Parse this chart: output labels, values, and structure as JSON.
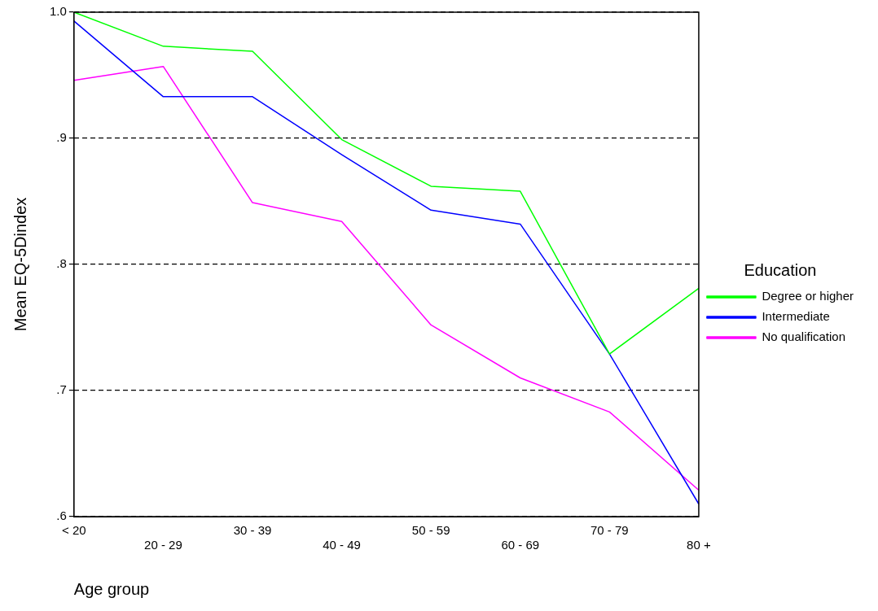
{
  "chart_data": {
    "type": "line",
    "xlabel": "Age group",
    "ylabel": "Mean EQ-5Dindex",
    "legend_title": "Education",
    "categories": [
      "< 20",
      "20 - 29",
      "30 - 39",
      "40 - 49",
      "50 - 59",
      "60 - 69",
      "70 - 79",
      "80 +"
    ],
    "series": [
      {
        "name": "Degree or higher",
        "color": "#00ff00",
        "values": [
          1.0,
          0.973,
          0.969,
          0.899,
          0.862,
          0.858,
          0.729,
          0.781
        ]
      },
      {
        "name": "Intermediate",
        "color": "#0000ff",
        "values": [
          0.993,
          0.933,
          0.933,
          0.887,
          0.843,
          0.832,
          0.729,
          0.61
        ]
      },
      {
        "name": "No qualification",
        "color": "#ff00ff",
        "values": [
          0.946,
          0.957,
          0.849,
          0.834,
          0.752,
          0.71,
          0.683,
          0.621
        ]
      }
    ],
    "ylim": [
      0.6,
      1.0
    ],
    "yticks": [
      {
        "value": 0.6,
        "label": ".6"
      },
      {
        "value": 0.7,
        "label": ".7"
      },
      {
        "value": 0.8,
        "label": ".8"
      },
      {
        "value": 0.9,
        "label": ".9"
      },
      {
        "value": 1.0,
        "label": "1.0"
      }
    ],
    "grid": "y",
    "legend": "right",
    "marker": "none",
    "line_style": "solid"
  }
}
